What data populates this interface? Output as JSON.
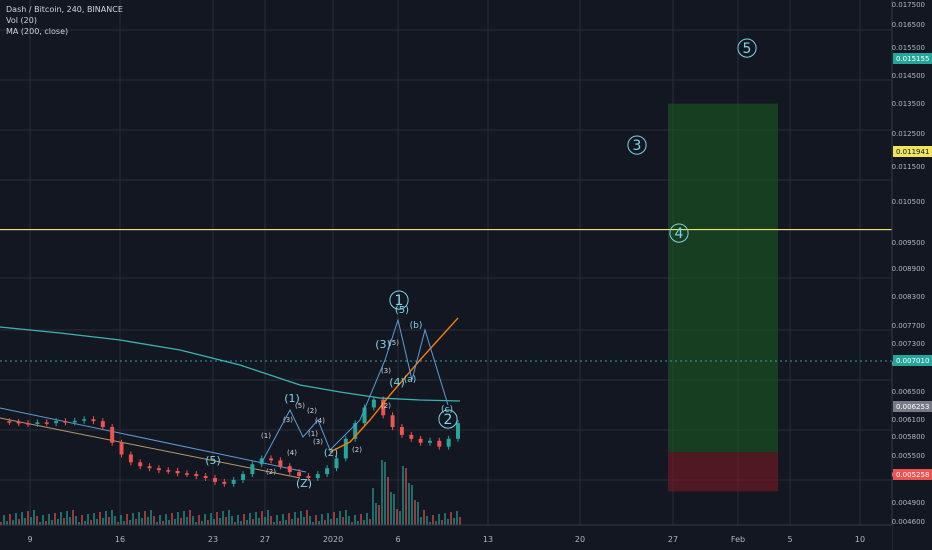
{
  "symbol": "Dash / Bitcoin, 240, BINANCE",
  "indicators": [
    "Vol (20)",
    "MA (200, close)"
  ],
  "price_axis": {
    "ticks": [
      "0.017500",
      "0.016500",
      "0.015500",
      "0.014500",
      "0.013500",
      "0.012500",
      "0.011500",
      "0.010500",
      "0.009500",
      "0.008900",
      "0.008300",
      "0.007700",
      "0.007300",
      "0.006900",
      "0.006500",
      "0.006100",
      "0.005800",
      "0.005500",
      "0.005200",
      "0.004900",
      "0.004600"
    ],
    "markers": [
      {
        "label": "0.015155",
        "color": "#26a69a"
      },
      {
        "label": "0.011941",
        "color": "#f0e35f"
      },
      {
        "label": "0.007010",
        "color": "#26a69a"
      },
      {
        "label": "0.006253",
        "color": "#787b86"
      },
      {
        "label": "0.005258",
        "color": "#ef5350"
      }
    ]
  },
  "time_axis": {
    "ticks": [
      "9",
      "16",
      "23",
      "27",
      "2020",
      "6",
      "13",
      "20",
      "27",
      "Feb",
      "5",
      "10"
    ]
  },
  "wave_labels": [
    "1",
    "2",
    "3",
    "4",
    "5",
    "(Z)",
    "(1)",
    "(2)",
    "(3)",
    "(4)",
    "(5)",
    "(a)",
    "(b)",
    "(c)"
  ],
  "colors": {
    "background": "#131722",
    "grid": "#2a2e39",
    "up": "#26a69a",
    "down": "#ef5350",
    "ma": "#3bb3b3",
    "target_line": "#e0e04a",
    "profit_zone": "#1b5e20",
    "loss_zone": "#6b1a24",
    "wave_text": "#7fd4e6"
  },
  "chart_data": {
    "type": "candlestick",
    "title": "Dash / Bitcoin, 240, BINANCE",
    "ylim": [
      0.0044,
      0.0178
    ],
    "horizontal_levels": [
      {
        "value": 0.011941,
        "color": "#f0e35f"
      }
    ],
    "position_tool": {
      "entry": 0.006253,
      "target": 0.015155,
      "stop": 0.005258
    },
    "price_path": [
      0.00705,
      0.00703,
      0.007,
      0.00698,
      0.00702,
      0.007,
      0.00705,
      0.00702,
      0.00706,
      0.0071,
      0.00705,
      0.0069,
      0.0065,
      0.0062,
      0.006,
      0.0059,
      0.00585,
      0.0058,
      0.00578,
      0.00572,
      0.0057,
      0.00565,
      0.0056,
      0.0055,
      0.00545,
      0.00555,
      0.0057,
      0.00595,
      0.0061,
      0.00605,
      0.0059,
      0.00575,
      0.00565,
      0.0056,
      0.0057,
      0.00585,
      0.0061,
      0.0066,
      0.007,
      0.0074,
      0.0076,
      0.0072,
      0.0069,
      0.0067,
      0.0066,
      0.0065,
      0.00655,
      0.0064,
      0.0066,
      0.007
    ]
  }
}
